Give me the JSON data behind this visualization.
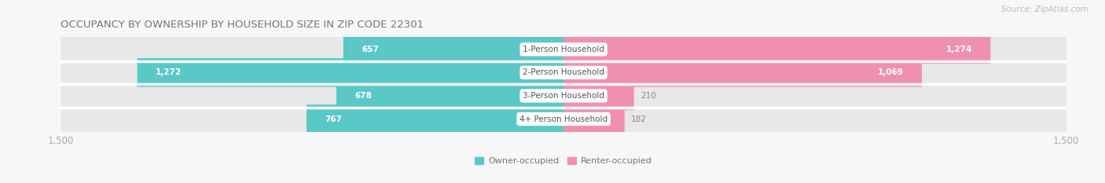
{
  "title": "OCCUPANCY BY OWNERSHIP BY HOUSEHOLD SIZE IN ZIP CODE 22301",
  "source": "Source: ZipAtlas.com",
  "categories": [
    "1-Person Household",
    "2-Person Household",
    "3-Person Household",
    "4+ Person Household"
  ],
  "owner_values": [
    657,
    1272,
    678,
    767
  ],
  "renter_values": [
    1274,
    1069,
    210,
    182
  ],
  "owner_color": "#5BC8C8",
  "renter_color": "#F090B0",
  "bar_height": 0.62,
  "xlim": 1500,
  "background_color": "#f7f7f7",
  "bar_bg_color": "#e8e8e8",
  "row_sep_color": "#ffffff",
  "title_fontsize": 9.5,
  "source_fontsize": 7.5,
  "tick_fontsize": 8.5,
  "value_fontsize": 7.5,
  "cat_fontsize": 7.5,
  "legend_fontsize": 8.0
}
